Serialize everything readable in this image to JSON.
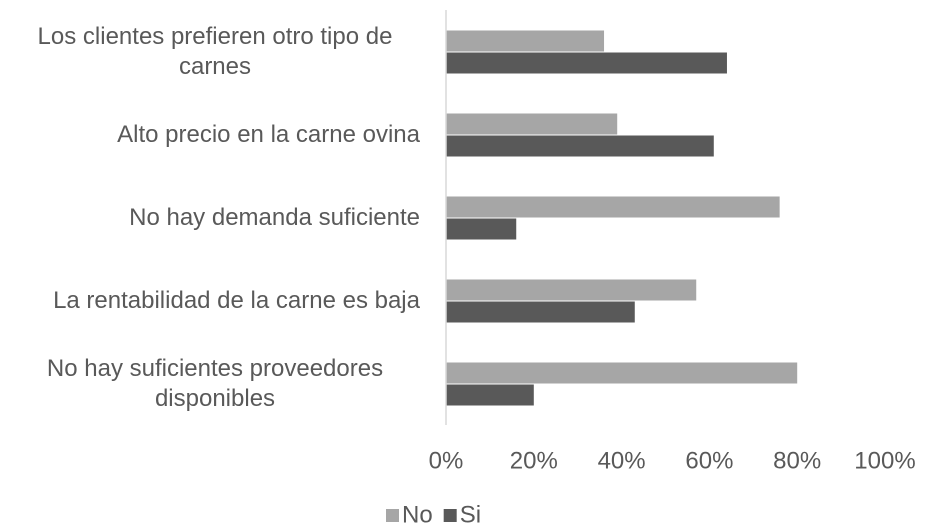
{
  "chart_data": {
    "type": "hbar",
    "categories": [
      "Los clientes prefieren otro tipo de carnes",
      "Alto precio en la carne ovina",
      "No hay demanda suficiente",
      "La rentabilidad de la carne es baja",
      "No hay suficientes proveedores disponibles"
    ],
    "series": [
      {
        "name": "No",
        "color": "#a6a6a6",
        "values": [
          36,
          39,
          76,
          57,
          80
        ]
      },
      {
        "name": "Si",
        "color": "#595959",
        "values": [
          64,
          61,
          16,
          43,
          20
        ]
      }
    ],
    "xlim": [
      0,
      100
    ],
    "xticks": [
      {
        "value": 0,
        "label": "0%"
      },
      {
        "value": 20,
        "label": "20%"
      },
      {
        "value": 40,
        "label": "40%"
      },
      {
        "value": 60,
        "label": "60%"
      },
      {
        "value": 80,
        "label": "80%"
      },
      {
        "value": 100,
        "label": "100%"
      }
    ],
    "grid": false,
    "legend": "bottom"
  }
}
